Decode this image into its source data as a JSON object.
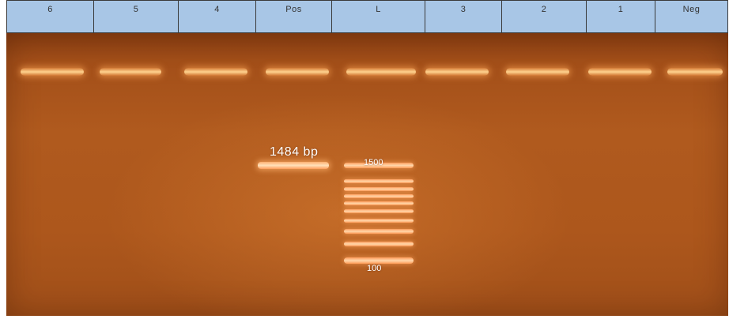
{
  "lanes": [
    "6",
    "5",
    "4",
    "Pos",
    "L",
    "3",
    "2",
    "1",
    "Neg"
  ],
  "annotations": {
    "band_size": "1484 bp",
    "ladder_top": "1500",
    "ladder_bottom": "100"
  },
  "colors": {
    "header": "#a8c6e6",
    "gel": "#b05a1e",
    "band": "#ffe1ba"
  }
}
